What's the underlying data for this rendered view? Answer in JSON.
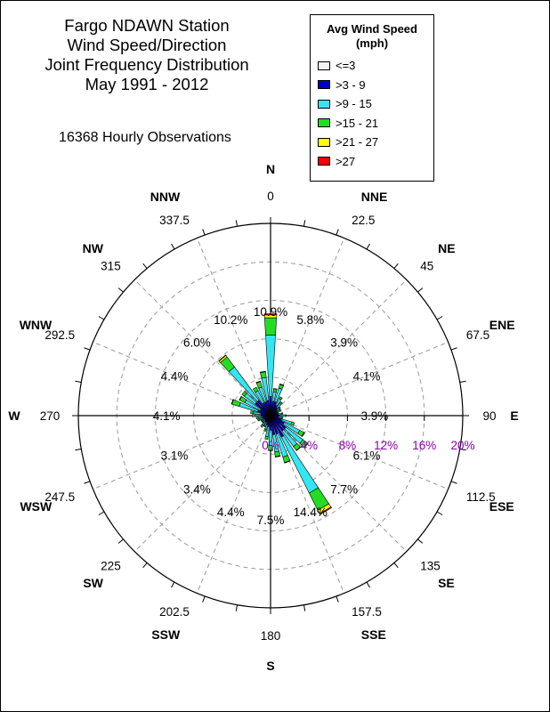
{
  "title_lines": [
    "Fargo NDAWN Station",
    "Wind Speed/Direction",
    "Joint Frequency Distribution",
    "May 1991 - 2012"
  ],
  "subtitle": "16368 Hourly Observations",
  "legend": {
    "title_line1": "Avg Wind Speed",
    "title_line2": "(mph)",
    "items": [
      {
        "label": "<=3",
        "color": "#f2f2f2"
      },
      {
        "label": ">3 - 9",
        "color": "#0000cc"
      },
      {
        "label": ">9 - 15",
        "color": "#33e6f2"
      },
      {
        "label": ">15 - 21",
        "color": "#22dd22"
      },
      {
        "label": ">21 - 27",
        "color": "#ffff00"
      },
      {
        "label": ">27",
        "color": "#ff0000"
      }
    ]
  },
  "chart_data": {
    "type": "polar-bar",
    "title": "Fargo NDAWN Station Wind Speed/Direction Joint Frequency Distribution May 1991 - 2012",
    "radial_ticks": [
      "0%",
      "4%",
      "8%",
      "12%",
      "16%",
      "20%"
    ],
    "radial_max": 20,
    "angle_labels": [
      {
        "deg": 0,
        "num": "0",
        "name": "N"
      },
      {
        "deg": 22.5,
        "num": "22.5",
        "name": "NNE"
      },
      {
        "deg": 45,
        "num": "45",
        "name": "NE"
      },
      {
        "deg": 67.5,
        "num": "67.5",
        "name": "ENE"
      },
      {
        "deg": 90,
        "num": "90",
        "name": "E"
      },
      {
        "deg": 112.5,
        "num": "112.5",
        "name": "ESE"
      },
      {
        "deg": 135,
        "num": "135",
        "name": "SE"
      },
      {
        "deg": 157.5,
        "num": "157.5",
        "name": "SSE"
      },
      {
        "deg": 180,
        "num": "180",
        "name": "S"
      },
      {
        "deg": 202.5,
        "num": "202.5",
        "name": "SSW"
      },
      {
        "deg": 225,
        "num": "225",
        "name": "SW"
      },
      {
        "deg": 247.5,
        "num": "247.5",
        "name": "WSW"
      },
      {
        "deg": 270,
        "num": "270",
        "name": "W"
      },
      {
        "deg": 292.5,
        "num": "292.5",
        "name": "WNW"
      },
      {
        "deg": 315,
        "num": "315",
        "name": "NW"
      },
      {
        "deg": 337.5,
        "num": "337.5",
        "name": "NNW"
      }
    ],
    "speed_bins": [
      "<=3",
      ">3 - 9",
      ">9 - 15",
      ">15 - 21",
      ">21 - 27",
      ">27"
    ],
    "sector_width_deg": 10,
    "sectors": [
      {
        "deg": 0,
        "pct": "10.9%",
        "values": [
          0,
          2.0,
          6.4,
          1.8,
          0.3,
          0.1
        ]
      },
      {
        "deg": 10,
        "values": [
          0,
          1.5,
          1.0,
          0.3,
          0.05,
          0
        ]
      },
      {
        "deg": 20,
        "pct": "5.8%",
        "values": [
          0,
          1.5,
          1.5,
          0.4,
          0.05,
          0
        ]
      },
      {
        "deg": 30,
        "values": [
          0,
          1.2,
          0.8,
          0.2,
          0,
          0
        ]
      },
      {
        "deg": 40,
        "values": [
          0,
          1.0,
          0.6,
          0.2,
          0,
          0
        ]
      },
      {
        "deg": 50,
        "values": [
          0,
          0.8,
          0.4,
          0.1,
          0,
          0
        ]
      },
      {
        "deg": 60,
        "values": [
          0,
          0.8,
          0.3,
          0.1,
          0,
          0
        ]
      },
      {
        "deg": 70,
        "pct": "3.9%",
        "values": [
          0,
          0.6,
          0.2,
          0.05,
          0,
          0
        ]
      },
      {
        "deg": 80,
        "values": [
          0,
          0.8,
          0.4,
          0.1,
          0,
          0
        ]
      },
      {
        "deg": 90,
        "values": [
          0,
          0.9,
          0.6,
          0.1,
          0,
          0
        ]
      },
      {
        "deg": 100,
        "pct": "4.1%",
        "values": [
          0,
          0.8,
          0.4,
          0.1,
          0,
          0
        ]
      },
      {
        "deg": 110,
        "values": [
          0,
          1.2,
          1.1,
          0.3,
          0,
          0
        ]
      },
      {
        "deg": 120,
        "values": [
          0,
          1.6,
          1.8,
          0.5,
          0.05,
          0
        ]
      },
      {
        "deg": 130,
        "values": [
          0,
          2.0,
          2.2,
          0.6,
          0.05,
          0
        ]
      },
      {
        "deg": 140,
        "values": [
          0,
          2.0,
          2.0,
          0.5,
          0.05,
          0
        ]
      },
      {
        "deg": 150,
        "pct": "6.1%",
        "values": [
          0,
          2.5,
          6.5,
          2.0,
          0.4,
          0.1
        ]
      },
      {
        "deg": 160,
        "pct": "7.7%",
        "values": [
          0,
          2.0,
          2.5,
          0.6,
          0.05,
          0
        ]
      },
      {
        "deg": 170,
        "pct": "14.4%",
        "values": [
          0,
          2.0,
          1.8,
          0.5,
          0.05,
          0
        ]
      },
      {
        "deg": 180,
        "pct": "7.5%",
        "values": [
          0,
          1.5,
          1.6,
          0.5,
          0.05,
          0
        ]
      },
      {
        "deg": 190,
        "values": [
          0,
          1.2,
          1.0,
          0.3,
          0,
          0
        ]
      },
      {
        "deg": 200,
        "pct": "4.4%",
        "values": [
          0,
          1.0,
          0.5,
          0.2,
          0,
          0
        ]
      },
      {
        "deg": 210,
        "values": [
          0,
          0.8,
          0.4,
          0.1,
          0,
          0
        ]
      },
      {
        "deg": 220,
        "pct": "3.4%",
        "values": [
          0,
          0.8,
          0.5,
          0.2,
          0,
          0
        ]
      },
      {
        "deg": 230,
        "values": [
          0,
          0.7,
          0.3,
          0.1,
          0,
          0
        ]
      },
      {
        "deg": 240,
        "pct": "3.1%",
        "values": [
          0,
          0.7,
          0.3,
          0.1,
          0,
          0
        ]
      },
      {
        "deg": 250,
        "values": [
          0,
          0.8,
          0.4,
          0.2,
          0,
          0
        ]
      },
      {
        "deg": 260,
        "values": [
          0,
          0.8,
          0.5,
          0.2,
          0,
          0
        ]
      },
      {
        "deg": 270,
        "pct": "4.1%",
        "values": [
          0,
          1.0,
          0.6,
          0.3,
          0,
          0
        ]
      },
      {
        "deg": 280,
        "values": [
          0,
          1.0,
          0.8,
          0.3,
          0,
          0
        ]
      },
      {
        "deg": 290,
        "pct": "4.4%",
        "values": [
          0,
          1.4,
          2.0,
          0.8,
          0.05,
          0
        ]
      },
      {
        "deg": 300,
        "pct": "6.0%",
        "values": [
          0,
          1.2,
          1.8,
          0.6,
          0.05,
          0
        ]
      },
      {
        "deg": 310,
        "values": [
          0,
          2.0,
          1.4,
          0.3,
          0,
          0
        ]
      },
      {
        "deg": 320,
        "pct": "10.2%",
        "values": [
          0,
          2.0,
          4.3,
          1.3,
          0.2,
          0.05
        ]
      },
      {
        "deg": 330,
        "values": [
          0,
          1.5,
          1.4,
          0.4,
          0,
          0
        ]
      },
      {
        "deg": 340,
        "values": [
          0,
          1.5,
          1.6,
          0.6,
          0.05,
          0
        ]
      },
      {
        "deg": 350,
        "values": [
          0,
          1.6,
          2.4,
          0.6,
          0.05,
          0
        ]
      }
    ],
    "sector_percent_labels": [
      {
        "deg": 0,
        "text": "10.9%"
      },
      {
        "deg": 22.5,
        "text": "5.8%"
      },
      {
        "deg": 45,
        "text": "3.9%"
      },
      {
        "deg": 67.5,
        "text": "4.1%"
      },
      {
        "deg": 90,
        "text": "3.9%"
      },
      {
        "deg": 112.5,
        "text": "6.1%"
      },
      {
        "deg": 135,
        "text": "7.7%"
      },
      {
        "deg": 157.5,
        "text": "14.4%"
      },
      {
        "deg": 180,
        "text": "7.5%"
      },
      {
        "deg": 202.5,
        "text": "4.4%"
      },
      {
        "deg": 225,
        "text": "3.4%"
      },
      {
        "deg": 247.5,
        "text": "3.1%"
      },
      {
        "deg": 270,
        "text": "4.1%"
      },
      {
        "deg": 292.5,
        "text": "4.4%"
      },
      {
        "deg": 315,
        "text": "6.0%"
      },
      {
        "deg": 337.5,
        "text": "10.2%"
      }
    ]
  }
}
